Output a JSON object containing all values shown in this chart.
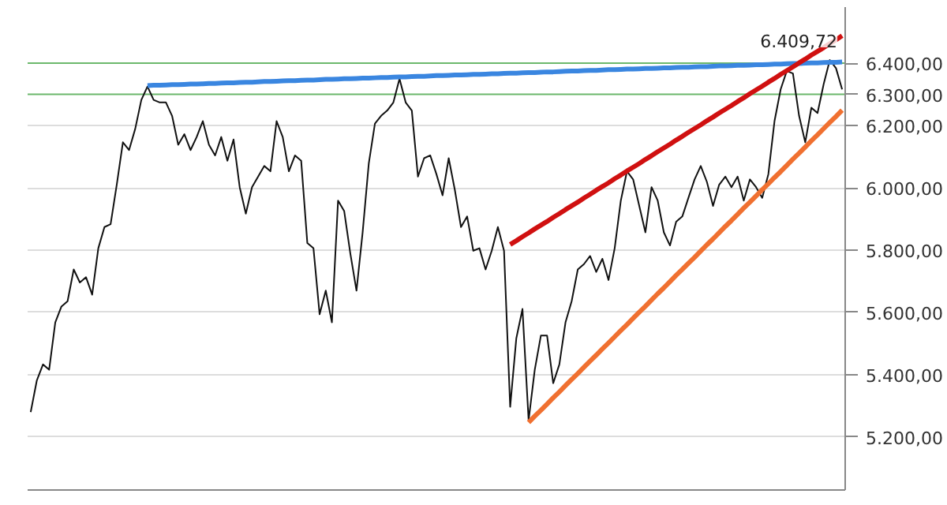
{
  "chart_data": {
    "type": "line",
    "categories": [
      null,
      null,
      null,
      null,
      null,
      null,
      null,
      null,
      null,
      null,
      null,
      null,
      null,
      null,
      null,
      null,
      null,
      null,
      null,
      null,
      null,
      null,
      null,
      null,
      null,
      null,
      null,
      null,
      null,
      null,
      null,
      null,
      null,
      null,
      null,
      null,
      null,
      null,
      null,
      null,
      null,
      null,
      null,
      null,
      null,
      null,
      null,
      null,
      null,
      null,
      null,
      null,
      null,
      null,
      null,
      null,
      null,
      null,
      null,
      null,
      null,
      null,
      null,
      null,
      null,
      null,
      null,
      null,
      null,
      null,
      null,
      null,
      null,
      null,
      null,
      null,
      null,
      null,
      null,
      null,
      null,
      null,
      null,
      null,
      null,
      null,
      null,
      null,
      null,
      null,
      null,
      null,
      null,
      null,
      null,
      null,
      null,
      null,
      null,
      null,
      null,
      null,
      null,
      null,
      null,
      null,
      null,
      null,
      null,
      null,
      null,
      null,
      null,
      null,
      null,
      null,
      null,
      null,
      null,
      null,
      null,
      null,
      null,
      null,
      null,
      null,
      null,
      null,
      null,
      null,
      null,
      null,
      null
    ],
    "series": [
      {
        "color": "#111111",
        "values": [
          5280,
          5382,
          5433,
          5416,
          5568,
          5619,
          5636,
          5738,
          5696,
          5713,
          5657,
          5806,
          5874,
          5883,
          6010,
          6146,
          6121,
          6189,
          6282,
          6325,
          6282,
          6274,
          6274,
          6231,
          6138,
          6172,
          6121,
          6163,
          6214,
          6138,
          6104,
          6163,
          6087,
          6155,
          6002,
          5917,
          6002,
          6036,
          6070,
          6053,
          6214,
          6163,
          6053,
          6104,
          6087,
          5823,
          5806,
          5594,
          5670,
          5568,
          5959,
          5925,
          5789,
          5670,
          5857,
          6078,
          6206,
          6231,
          6248,
          6274,
          6350,
          6274,
          6248,
          6036,
          6095,
          6104,
          6044,
          5976,
          6095,
          5993,
          5874,
          5908,
          5798,
          5806,
          5738,
          5798,
          5874,
          5798,
          5297,
          5517,
          5611,
          5254,
          5416,
          5526,
          5526,
          5373,
          5433,
          5568,
          5636,
          5738,
          5755,
          5781,
          5730,
          5772,
          5704,
          5806,
          5959,
          6053,
          6027,
          5942,
          5857,
          6002,
          5959,
          5857,
          5815,
          5891,
          5908,
          5968,
          6027,
          6070,
          6019,
          5942,
          6010,
          6036,
          6002,
          6036,
          5959,
          6027,
          6002,
          5968,
          6044,
          6214,
          6316,
          6375,
          6367,
          6231,
          6146,
          6257,
          6240,
          6333,
          6410,
          6384,
          6316
        ]
      },
      {
        "color": "#3a86e0",
        "values": [
          null,
          null,
          null,
          null,
          null,
          null,
          null,
          null,
          null,
          null,
          null,
          null,
          null,
          null,
          null,
          null,
          null,
          null,
          null,
          6328,
          6329,
          6329,
          6330,
          6331,
          6331,
          6332,
          6333,
          6333,
          6334,
          6335,
          6335,
          6336,
          6337,
          6337,
          6338,
          6339,
          6339,
          6340,
          6341,
          6341,
          6342,
          6343,
          6344,
          6344,
          6345,
          6346,
          6346,
          6347,
          6348,
          6348,
          6349,
          6350,
          6350,
          6351,
          6352,
          6352,
          6353,
          6354,
          6354,
          6355,
          6356,
          6356,
          6357,
          6358,
          6358,
          6359,
          6360,
          6360,
          6361,
          6362,
          6362,
          6363,
          6364,
          6364,
          6365,
          6366,
          6366,
          6367,
          6368,
          6368,
          6369,
          6370,
          6370,
          6371,
          6372,
          6372,
          6373,
          6374,
          6375,
          6375,
          6376,
          6377,
          6377,
          6378,
          6379,
          6379,
          6380,
          6381,
          6381,
          6382,
          6383,
          6383,
          6384,
          6385,
          6385,
          6386,
          6387,
          6387,
          6388,
          6389,
          6389,
          6390,
          6391,
          6391,
          6392,
          6393,
          6393,
          6394,
          6395,
          6395,
          6396,
          6397,
          6397,
          6398,
          6399,
          6399,
          6400,
          6401,
          6401,
          6402,
          6403,
          6403,
          6404
        ]
      },
      {
        "color": "#d01010",
        "values": [
          null,
          null,
          null,
          null,
          null,
          null,
          null,
          null,
          null,
          null,
          null,
          null,
          null,
          null,
          null,
          null,
          null,
          null,
          null,
          null,
          null,
          null,
          null,
          null,
          null,
          null,
          null,
          null,
          null,
          null,
          null,
          null,
          null,
          null,
          null,
          null,
          null,
          null,
          null,
          null,
          null,
          null,
          null,
          null,
          null,
          null,
          null,
          null,
          null,
          null,
          null,
          null,
          null,
          null,
          null,
          null,
          null,
          null,
          null,
          null,
          null,
          null,
          null,
          null,
          null,
          null,
          null,
          null,
          null,
          null,
          null,
          null,
          null,
          null,
          null,
          null,
          null,
          null,
          5818,
          5830,
          5843,
          5855,
          5868,
          5880,
          5892,
          5905,
          5917,
          5930,
          5942,
          5954,
          5967,
          5979,
          5992,
          6004,
          6016,
          6029,
          6041,
          6054,
          6066,
          6078,
          6091,
          6103,
          6116,
          6128,
          6140,
          6153,
          6165,
          6178,
          6190,
          6202,
          6215,
          6227,
          6240,
          6252,
          6264,
          6277,
          6289,
          6302,
          6314,
          6326,
          6339,
          6351,
          6364,
          6376,
          6388,
          6401,
          6413,
          6426,
          6438,
          6450,
          6463,
          6475,
          6488
        ]
      },
      {
        "color": "#f07030",
        "values": [
          null,
          null,
          null,
          null,
          null,
          null,
          null,
          null,
          null,
          null,
          null,
          null,
          null,
          null,
          null,
          null,
          null,
          null,
          null,
          null,
          null,
          null,
          null,
          null,
          null,
          null,
          null,
          null,
          null,
          null,
          null,
          null,
          null,
          null,
          null,
          null,
          null,
          null,
          null,
          null,
          null,
          null,
          null,
          null,
          null,
          null,
          null,
          null,
          null,
          null,
          null,
          null,
          null,
          null,
          null,
          null,
          null,
          null,
          null,
          null,
          null,
          null,
          null,
          null,
          null,
          null,
          null,
          null,
          null,
          null,
          null,
          null,
          null,
          null,
          null,
          null,
          null,
          null,
          null,
          null,
          null,
          5247,
          5267,
          5286,
          5306,
          5326,
          5345,
          5365,
          5385,
          5404,
          5424,
          5444,
          5463,
          5483,
          5502,
          5522,
          5542,
          5561,
          5581,
          5601,
          5620,
          5640,
          5660,
          5679,
          5699,
          5719,
          5738,
          5758,
          5777,
          5797,
          5817,
          5836,
          5856,
          5876,
          5895,
          5915,
          5935,
          5954,
          5974,
          5994,
          6013,
          6033,
          6052,
          6072,
          6092,
          6111,
          6131,
          6151,
          6170,
          6190,
          6210,
          6229,
          6249
        ]
      }
    ],
    "ylim": [
      5030,
      6580
    ],
    "yticks": [
      {
        "value": 5200,
        "label": "5.200,00"
      },
      {
        "value": 5400,
        "label": "5.400,00"
      },
      {
        "value": 5600,
        "label": "5.600,00"
      },
      {
        "value": 5800,
        "label": "5.800,00"
      },
      {
        "value": 6000,
        "label": "6.000,00"
      },
      {
        "value": 6200,
        "label": "6.200,00"
      }
    ],
    "ref_lines": [
      {
        "axis": "y",
        "value": 6400,
        "label": "6.400,00",
        "color": "#6cb86c"
      },
      {
        "axis": "y",
        "value": 6300,
        "label": "6.300,00",
        "color": "#6cb86c"
      }
    ],
    "annotations": [
      "6.409,72"
    ],
    "grid": "y",
    "tick_labels": "y"
  }
}
